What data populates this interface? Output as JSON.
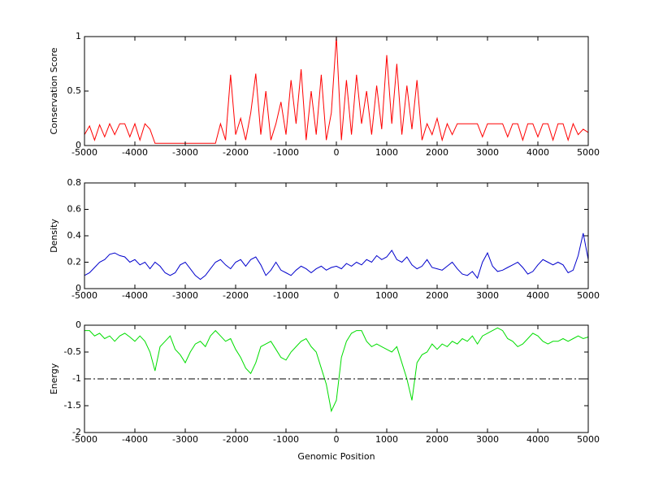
{
  "chart_data": [
    {
      "type": "line",
      "ylabel": "Conservation Score",
      "color": "#ff0000",
      "x": [
        -5000,
        -4900,
        -4800,
        -4700,
        -4600,
        -4500,
        -4400,
        -4300,
        -4200,
        -4100,
        -4000,
        -3900,
        -3800,
        -3700,
        -3600,
        -3500,
        -3400,
        -3300,
        -3200,
        -3100,
        -3000,
        -2900,
        -2800,
        -2700,
        -2600,
        -2500,
        -2400,
        -2300,
        -2200,
        -2100,
        -2000,
        -1900,
        -1800,
        -1700,
        -1600,
        -1500,
        -1400,
        -1300,
        -1200,
        -1100,
        -1000,
        -900,
        -800,
        -700,
        -600,
        -500,
        -400,
        -300,
        -200,
        -100,
        0,
        100,
        200,
        300,
        400,
        500,
        600,
        700,
        800,
        900,
        1000,
        1100,
        1200,
        1300,
        1400,
        1500,
        1600,
        1700,
        1800,
        1900,
        2000,
        2100,
        2200,
        2300,
        2400,
        2500,
        2600,
        2700,
        2800,
        2900,
        3000,
        3100,
        3200,
        3300,
        3400,
        3500,
        3600,
        3700,
        3800,
        3900,
        4000,
        4100,
        4200,
        4300,
        4400,
        4500,
        4600,
        4700,
        4800,
        4900,
        5000
      ],
      "values": [
        0.1,
        0.18,
        0.05,
        0.19,
        0.08,
        0.2,
        0.1,
        0.2,
        0.2,
        0.08,
        0.2,
        0.05,
        0.2,
        0.15,
        0.02,
        0.02,
        0.02,
        0.02,
        0.02,
        0.02,
        0.02,
        0.02,
        0.02,
        0.02,
        0.02,
        0.02,
        0.02,
        0.2,
        0.05,
        0.65,
        0.1,
        0.25,
        0.05,
        0.3,
        0.66,
        0.1,
        0.5,
        0.05,
        0.2,
        0.4,
        0.1,
        0.6,
        0.2,
        0.7,
        0.05,
        0.5,
        0.1,
        0.65,
        0.05,
        0.3,
        1,
        0.05,
        0.6,
        0.1,
        0.65,
        0.2,
        0.5,
        0.1,
        0.55,
        0.15,
        0.83,
        0.2,
        0.75,
        0.1,
        0.55,
        0.15,
        0.6,
        0.05,
        0.2,
        0.1,
        0.25,
        0.05,
        0.2,
        0.1,
        0.2,
        0.2,
        0.2,
        0.2,
        0.2,
        0.08,
        0.2,
        0.2,
        0.2,
        0.2,
        0.08,
        0.2,
        0.2,
        0.05,
        0.2,
        0.2,
        0.08,
        0.2,
        0.2,
        0.05,
        0.2,
        0.2,
        0.05,
        0.2,
        0.1,
        0.15,
        0.12
      ],
      "xlim": [
        -5000,
        5000
      ],
      "xticks": [
        -5000,
        -4000,
        -3000,
        -2000,
        -1000,
        0,
        1000,
        2000,
        3000,
        4000,
        5000
      ],
      "ylim": [
        0,
        1
      ],
      "yticks": [
        0,
        0.5,
        1
      ]
    },
    {
      "type": "line",
      "ylabel": "Density",
      "color": "#0000cc",
      "x": [
        -5000,
        -4900,
        -4800,
        -4700,
        -4600,
        -4500,
        -4400,
        -4300,
        -4200,
        -4100,
        -4000,
        -3900,
        -3800,
        -3700,
        -3600,
        -3500,
        -3400,
        -3300,
        -3200,
        -3100,
        -3000,
        -2900,
        -2800,
        -2700,
        -2600,
        -2500,
        -2400,
        -2300,
        -2200,
        -2100,
        -2000,
        -1900,
        -1800,
        -1700,
        -1600,
        -1500,
        -1400,
        -1300,
        -1200,
        -1100,
        -1000,
        -900,
        -800,
        -700,
        -600,
        -500,
        -400,
        -300,
        -200,
        -100,
        0,
        100,
        200,
        300,
        400,
        500,
        600,
        700,
        800,
        900,
        1000,
        1100,
        1200,
        1300,
        1400,
        1500,
        1600,
        1700,
        1800,
        1900,
        2000,
        2100,
        2200,
        2300,
        2400,
        2500,
        2600,
        2700,
        2800,
        2900,
        3000,
        3100,
        3200,
        3300,
        3400,
        3500,
        3600,
        3700,
        3800,
        3900,
        4000,
        4100,
        4200,
        4300,
        4400,
        4500,
        4600,
        4700,
        4800,
        4900,
        5000
      ],
      "values": [
        0.1,
        0.12,
        0.16,
        0.2,
        0.22,
        0.26,
        0.27,
        0.25,
        0.24,
        0.2,
        0.22,
        0.18,
        0.2,
        0.15,
        0.2,
        0.17,
        0.12,
        0.1,
        0.12,
        0.18,
        0.2,
        0.15,
        0.1,
        0.07,
        0.1,
        0.15,
        0.2,
        0.22,
        0.18,
        0.15,
        0.2,
        0.22,
        0.17,
        0.22,
        0.24,
        0.18,
        0.1,
        0.14,
        0.2,
        0.14,
        0.12,
        0.1,
        0.14,
        0.17,
        0.15,
        0.12,
        0.15,
        0.17,
        0.14,
        0.16,
        0.17,
        0.15,
        0.19,
        0.17,
        0.2,
        0.18,
        0.22,
        0.2,
        0.25,
        0.22,
        0.24,
        0.29,
        0.22,
        0.2,
        0.24,
        0.18,
        0.15,
        0.17,
        0.22,
        0.16,
        0.15,
        0.14,
        0.17,
        0.2,
        0.15,
        0.11,
        0.1,
        0.13,
        0.08,
        0.2,
        0.27,
        0.17,
        0.13,
        0.14,
        0.16,
        0.18,
        0.2,
        0.16,
        0.11,
        0.13,
        0.18,
        0.22,
        0.2,
        0.18,
        0.2,
        0.18,
        0.12,
        0.14,
        0.25,
        0.42,
        0.22
      ],
      "xlim": [
        -5000,
        5000
      ],
      "xticks": [
        -5000,
        -4000,
        -3000,
        -2000,
        -1000,
        0,
        1000,
        2000,
        3000,
        4000,
        5000
      ],
      "ylim": [
        0,
        0.8
      ],
      "yticks": [
        0,
        0.2,
        0.4,
        0.6,
        0.8
      ]
    },
    {
      "type": "line",
      "ylabel": "Energy",
      "xlabel": "Genomic Position",
      "color": "#00dd00",
      "hline": -1,
      "x": [
        -5000,
        -4900,
        -4800,
        -4700,
        -4600,
        -4500,
        -4400,
        -4300,
        -4200,
        -4100,
        -4000,
        -3900,
        -3800,
        -3700,
        -3600,
        -3500,
        -3400,
        -3300,
        -3200,
        -3100,
        -3000,
        -2900,
        -2800,
        -2700,
        -2600,
        -2500,
        -2400,
        -2300,
        -2200,
        -2100,
        -2000,
        -1900,
        -1800,
        -1700,
        -1600,
        -1500,
        -1400,
        -1300,
        -1200,
        -1100,
        -1000,
        -900,
        -800,
        -700,
        -600,
        -500,
        -400,
        -300,
        -200,
        -100,
        0,
        100,
        200,
        300,
        400,
        500,
        600,
        700,
        800,
        900,
        1000,
        1100,
        1200,
        1300,
        1400,
        1500,
        1600,
        1700,
        1800,
        1900,
        2000,
        2100,
        2200,
        2300,
        2400,
        2500,
        2600,
        2700,
        2800,
        2900,
        3000,
        3100,
        3200,
        3300,
        3400,
        3500,
        3600,
        3700,
        3800,
        3900,
        4000,
        4100,
        4200,
        4300,
        4400,
        4500,
        4600,
        4700,
        4800,
        4900,
        5000
      ],
      "values": [
        -0.1,
        -0.1,
        -0.2,
        -0.15,
        -0.25,
        -0.2,
        -0.3,
        -0.2,
        -0.15,
        -0.22,
        -0.3,
        -0.2,
        -0.3,
        -0.5,
        -0.85,
        -0.4,
        -0.3,
        -0.2,
        -0.45,
        -0.55,
        -0.7,
        -0.5,
        -0.35,
        -0.3,
        -0.4,
        -0.2,
        -0.1,
        -0.2,
        -0.3,
        -0.25,
        -0.45,
        -0.6,
        -0.8,
        -0.9,
        -0.7,
        -0.4,
        -0.35,
        -0.3,
        -0.45,
        -0.6,
        -0.65,
        -0.5,
        -0.4,
        -0.3,
        -0.25,
        -0.4,
        -0.5,
        -0.8,
        -1.1,
        -1.6,
        -1.4,
        -0.6,
        -0.3,
        -0.15,
        -0.1,
        -0.1,
        -0.3,
        -0.4,
        -0.35,
        -0.4,
        -0.45,
        -0.5,
        -0.4,
        -0.7,
        -1.0,
        -1.4,
        -0.7,
        -0.55,
        -0.5,
        -0.35,
        -0.45,
        -0.35,
        -0.4,
        -0.3,
        -0.35,
        -0.25,
        -0.3,
        -0.2,
        -0.35,
        -0.2,
        -0.15,
        -0.1,
        -0.05,
        -0.1,
        -0.25,
        -0.3,
        -0.4,
        -0.35,
        -0.25,
        -0.15,
        -0.2,
        -0.3,
        -0.35,
        -0.3,
        -0.3,
        -0.25,
        -0.3,
        -0.25,
        -0.2,
        -0.25,
        -0.22
      ],
      "xlim": [
        -5000,
        5000
      ],
      "xticks": [
        -5000,
        -4000,
        -3000,
        -2000,
        -1000,
        0,
        1000,
        2000,
        3000,
        4000,
        5000
      ],
      "ylim": [
        -2,
        0
      ],
      "yticks": [
        -2,
        -1.5,
        -1,
        -0.5,
        0
      ]
    }
  ]
}
